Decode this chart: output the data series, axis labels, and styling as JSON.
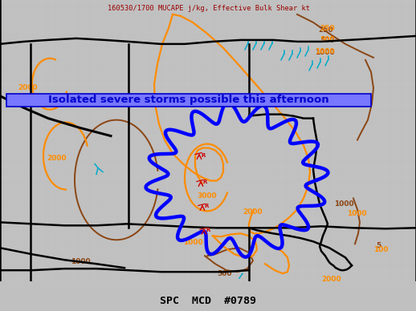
{
  "title_top": "160530/1700 MUCAPE j/kg, Effective Bulk Shear kt",
  "title_bottom": "SPC  MCD  #0789",
  "banner_text": "Isolated severe storms possible this afternoon",
  "map_bg": "#f0f0f0",
  "county_line_color": "#c8c8c8",
  "county_lw": 0.35,
  "state_line_color": "#000000",
  "state_lw": 1.8,
  "orange_color": "#ff8c00",
  "brown_color": "#8B4513",
  "blue_mcd_color": "#0000ff",
  "blue_mcd_lw": 3.2,
  "cyan_color": "#00aacc",
  "red_color": "#cc0000",
  "banner_fill": "#7777ff",
  "banner_edge": "#0000cc",
  "banner_text_color": "#0000cc",
  "title_top_color": "#990000",
  "figsize": [
    5.18,
    3.88
  ],
  "dpi": 100
}
